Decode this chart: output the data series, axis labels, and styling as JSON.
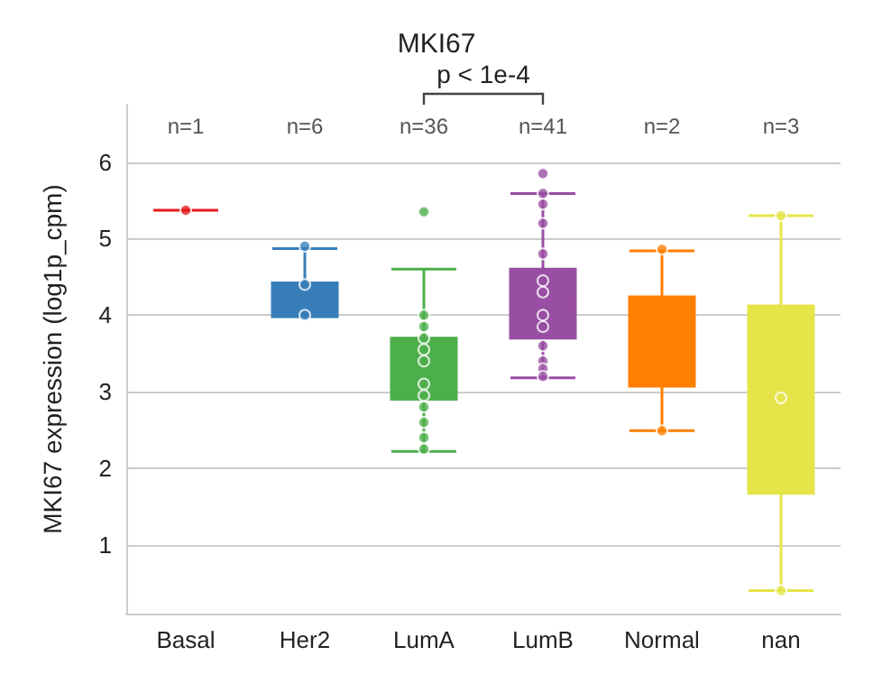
{
  "chart_data": {
    "type": "box",
    "title": "MKI67",
    "ylabel": "MKI67 expression (log1p_cpm)",
    "categories": [
      "Basal",
      "Her2",
      "LumA",
      "LumB",
      "Normal",
      "nan"
    ],
    "colors": [
      "#e41a1c",
      "#377eb8",
      "#4daf4a",
      "#984ea3",
      "#ff7f00",
      "#e5e54a"
    ],
    "boxes": [
      {
        "low": 5.37,
        "q1": 5.37,
        "median": 5.37,
        "q3": 5.37,
        "high": 5.37
      },
      {
        "low": 3.98,
        "q1": 3.98,
        "median": 4.16,
        "q3": 4.42,
        "high": 4.87
      },
      {
        "low": 2.22,
        "q1": 2.9,
        "median": 3.26,
        "q3": 3.7,
        "high": 4.6
      },
      {
        "low": 3.18,
        "q1": 3.7,
        "median": 4.14,
        "q3": 4.6,
        "high": 5.59
      },
      {
        "low": 2.49,
        "q1": 3.07,
        "median": 3.66,
        "q3": 4.24,
        "high": 4.84
      },
      {
        "low": 0.4,
        "q1": 1.67,
        "median": 2.92,
        "q3": 4.12,
        "high": 5.3
      }
    ],
    "series": [
      {
        "type": "scatter",
        "color": "#e41a1c",
        "x": [
          "Basal"
        ],
        "values": [
          5.37
        ]
      },
      {
        "type": "scatter",
        "color": "#377eb8",
        "x": [
          "Her2",
          "Her2",
          "Her2"
        ],
        "values": [
          4.9,
          4.4,
          4.0
        ]
      },
      {
        "type": "scatter",
        "color": "#4daf4a",
        "x": [
          "LumA",
          "LumA",
          "LumA",
          "LumA",
          "LumA",
          "LumA",
          "LumA",
          "LumA",
          "LumA",
          "LumA",
          "LumA",
          "LumA"
        ],
        "values": [
          5.35,
          4.0,
          3.85,
          3.7,
          3.55,
          3.4,
          3.1,
          2.95,
          2.8,
          2.6,
          2.4,
          2.25
        ]
      },
      {
        "type": "scatter",
        "color": "#984ea3",
        "x": [
          "LumB",
          "LumB",
          "LumB",
          "LumB",
          "LumB",
          "LumB",
          "LumB",
          "LumB",
          "LumB",
          "LumB",
          "LumB",
          "LumB",
          "LumB"
        ],
        "values": [
          5.85,
          5.59,
          5.45,
          5.2,
          4.8,
          4.45,
          4.3,
          4.0,
          3.85,
          3.6,
          3.4,
          3.3,
          3.2
        ]
      },
      {
        "type": "scatter",
        "color": "#ff7f00",
        "x": [
          "Normal",
          "Normal"
        ],
        "values": [
          4.86,
          2.49
        ]
      },
      {
        "type": "scatter",
        "color": "#e5e54a",
        "x": [
          "nan",
          "nan",
          "nan"
        ],
        "values": [
          5.3,
          2.92,
          0.4
        ]
      }
    ],
    "annotations": [
      "n=1",
      "n=6",
      "n=36",
      "n=41",
      "n=2",
      "n=3",
      "p < 1e-4"
    ],
    "ylim": [
      0.1,
      6.75
    ],
    "yticks": [
      1,
      2,
      3,
      4,
      5,
      6
    ],
    "grid": "y"
  }
}
